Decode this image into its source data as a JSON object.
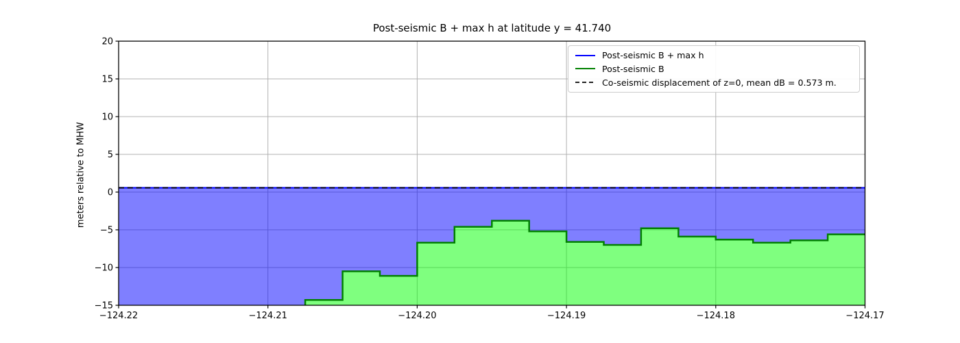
{
  "chart_data": {
    "type": "area",
    "title": "Post-seismic B + max h at latitude y = 41.740",
    "xlabel": "",
    "ylabel": "meters relative to MHW",
    "latitude": 41.74,
    "mean_dB_m": 0.573,
    "xlim": [
      -124.22,
      -124.17
    ],
    "ylim": [
      -15,
      20
    ],
    "x_ticks": [
      -124.22,
      -124.21,
      -124.2,
      -124.19,
      -124.18,
      -124.17
    ],
    "x_tick_labels": [
      "−124.22",
      "−124.21",
      "−124.20",
      "−124.19",
      "−124.18",
      "−124.17"
    ],
    "y_ticks": [
      20,
      15,
      10,
      5,
      0,
      -5,
      -10,
      -15
    ],
    "y_tick_labels": [
      "20",
      "15",
      "10",
      "5",
      "0",
      "−5",
      "−10",
      "−15"
    ],
    "grid": true,
    "legend_position": "upper right",
    "series": [
      {
        "name": "Post-seismic B + max h",
        "type": "hline-with-fill",
        "y": 0.573,
        "line_style": "solid",
        "line_color": "#0000ff",
        "fill_color": "rgba(0,0,255,0.5)",
        "fill_extent": "from line down to Post-seismic B surface (to plot bottom where B is off-scale)"
      },
      {
        "name": "Post-seismic B",
        "type": "step-with-fill",
        "x_edges": [
          -124.2075,
          -124.205,
          -124.2025,
          -124.2,
          -124.1975,
          -124.195,
          -124.1925,
          -124.19,
          -124.1875,
          -124.185,
          -124.1825,
          -124.18,
          -124.1775,
          -124.175,
          -124.1725,
          -124.17
        ],
        "values": [
          -14.3,
          -10.5,
          -11.1,
          -6.7,
          -4.6,
          -3.8,
          -5.2,
          -6.6,
          -7.0,
          -4.8,
          -5.9,
          -6.3,
          -6.7,
          -6.4,
          -5.6
        ],
        "left_of_first_edge": "B below −15 m (off scale, no green fill shown)",
        "line_style": "solid",
        "line_color": "#008000",
        "fill_color": "rgba(0,255,0,0.5)",
        "fill_extent": "from step line down to plot bottom"
      },
      {
        "name": "Co-seismic displacement of z=0, mean dB = 0.573 m.",
        "type": "hline",
        "y": 0.573,
        "line_style": "dashed",
        "line_color": "#000000"
      }
    ]
  },
  "style": {
    "background": "#ffffff",
    "grid_color": "#b0b0b0",
    "spine_color": "#000000",
    "tick_color": "#000000",
    "legend_border_color": "#cccccc"
  }
}
